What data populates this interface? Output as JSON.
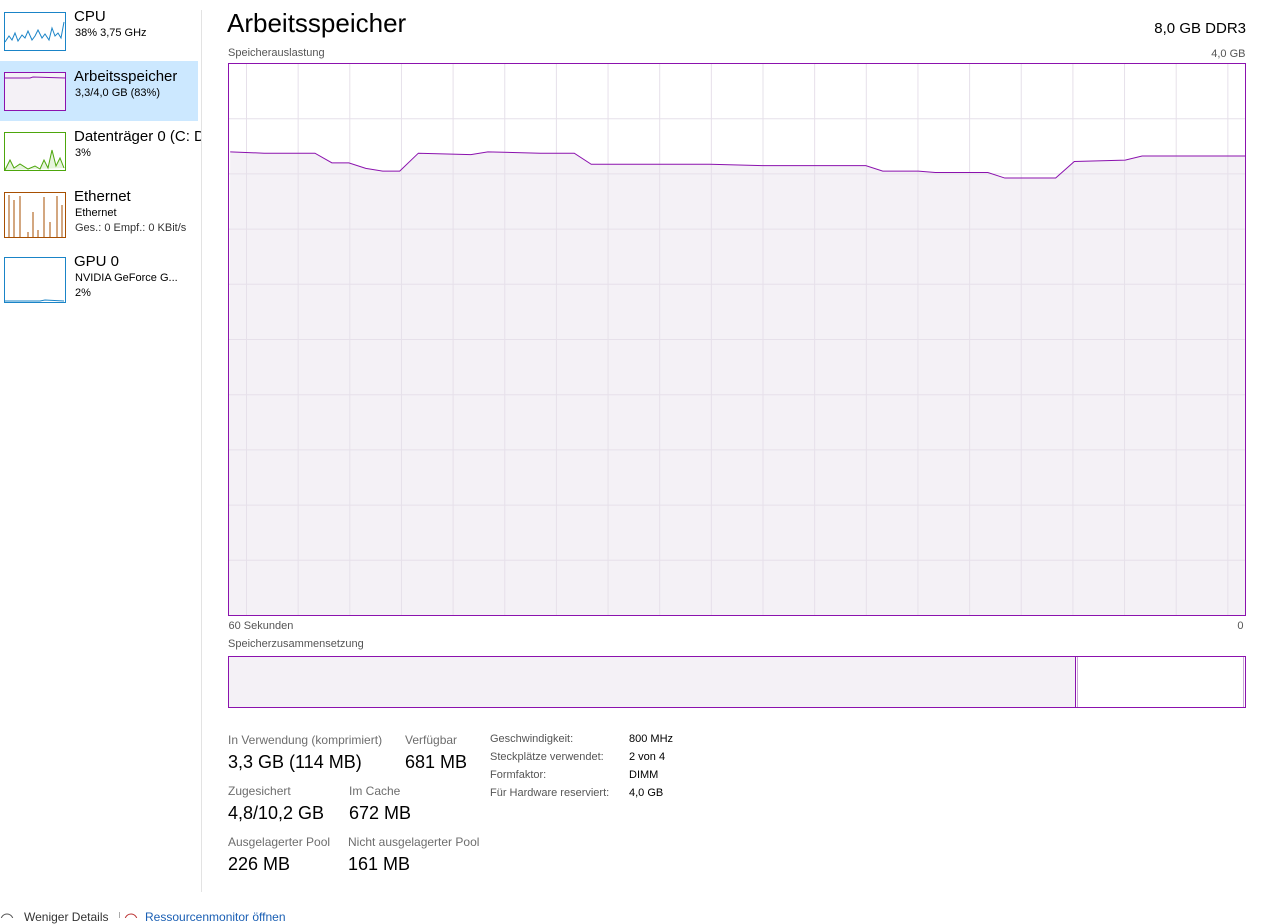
{
  "sidebar": [
    {
      "name": "CPU",
      "lines": [
        "38% 3,75 GHz"
      ]
    },
    {
      "name": "Arbeitsspeicher",
      "lines": [
        "3,3/4,0 GB (83%)"
      ]
    },
    {
      "name": "Datenträger 0 (C: D",
      "lines": [
        "3%"
      ]
    },
    {
      "name": "Ethernet",
      "lines": [
        "Ethernet",
        "Ges.: 0 Empf.: 0 KBit/s"
      ]
    },
    {
      "name": "GPU 0",
      "lines": [
        "NVIDIA GeForce G...",
        "2%"
      ]
    }
  ],
  "header": {
    "title": "Arbeitsspeicher",
    "capacity": "8,0 GB DDR3"
  },
  "graph": {
    "type": "line",
    "label": "Speicherauslastung",
    "color": "#8b12ae",
    "x": [
      59.9,
      57.9,
      54.9,
      53.9,
      52.9,
      51.9,
      50.9,
      49.9,
      48.8,
      45.7,
      44.7,
      41.6,
      39.6,
      38.6,
      31.6,
      28.5,
      22.4,
      21.4,
      19.3,
      18.3,
      15.2,
      14.2,
      11.2,
      10.1,
      7.1,
      6.1,
      1.0,
      0
    ],
    "values": [
      3.36,
      3.35,
      3.35,
      3.28,
      3.28,
      3.24,
      3.22,
      3.22,
      3.35,
      3.34,
      3.36,
      3.35,
      3.35,
      3.27,
      3.27,
      3.26,
      3.26,
      3.22,
      3.22,
      3.21,
      3.21,
      3.17,
      3.17,
      3.29,
      3.3,
      3.33,
      3.33,
      3.33
    ],
    "xlim": [
      60,
      0
    ],
    "xticks": [
      {
        "value": 60,
        "label": "60 Sekunden"
      },
      0
    ],
    "ylim": [
      0,
      4
    ],
    "yticks": [
      {
        "value": 4,
        "label": "4,0 GB"
      }
    ]
  },
  "composition": {
    "label": "Speicherzusammensetzung"
  },
  "stats": [
    {
      "label": "In Verwendung (komprimiert)",
      "value": "3,3 GB (114 MB)"
    },
    {
      "label": "Verfügbar",
      "value": "681 MB"
    },
    {
      "label": "Zugesichert",
      "value": "4,8/10,2 GB"
    },
    {
      "label": "Im Cache",
      "value": "672 MB"
    },
    {
      "label": "Ausgelagerter Pool",
      "value": "226 MB"
    },
    {
      "label": "Nicht ausgelagerter Pool",
      "value": "161 MB"
    }
  ],
  "details": [
    {
      "label": "Geschwindigkeit:",
      "value": "800 MHz"
    },
    {
      "label": "Steckplätze verwendet:",
      "value": "2 von 4"
    },
    {
      "label": "Formfaktor:",
      "value": "DIMM"
    },
    {
      "label": "Für Hardware reserviert:",
      "value": "4,0 GB"
    }
  ],
  "footer": {
    "less": "Weniger Details",
    "monitor": "Ressourcenmonitor öffnen"
  }
}
